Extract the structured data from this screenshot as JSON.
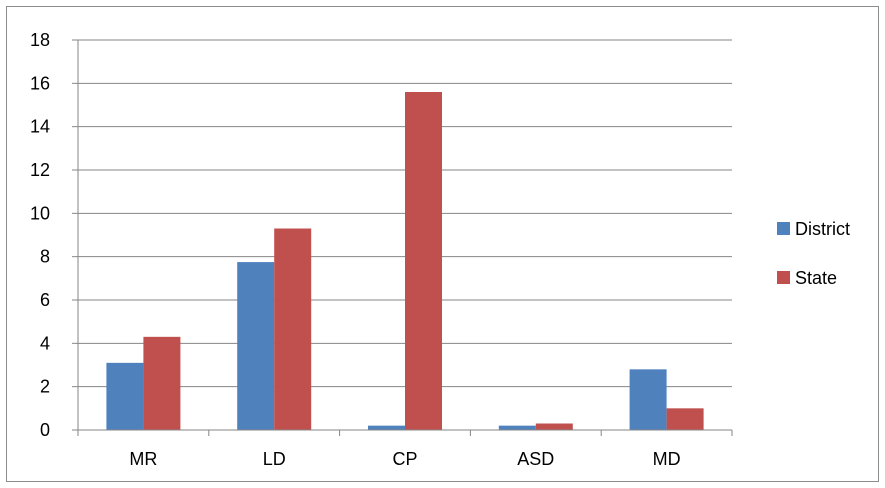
{
  "chart_data": {
    "type": "bar",
    "title": "",
    "xlabel": "",
    "ylabel": "",
    "categories": [
      "MR",
      "LD",
      "CP",
      "ASD",
      "MD"
    ],
    "series": [
      {
        "name": "District",
        "color": "#4F81BD",
        "values": [
          3.1,
          7.75,
          0.2,
          0.2,
          2.8
        ]
      },
      {
        "name": "State",
        "color": "#C0504D",
        "values": [
          4.3,
          9.3,
          15.6,
          0.3,
          1.0
        ]
      }
    ],
    "ylim": [
      0,
      18
    ],
    "yticks": [
      0,
      2,
      4,
      6,
      8,
      10,
      12,
      14,
      16,
      18
    ],
    "grid": true,
    "legend_position": "right"
  }
}
